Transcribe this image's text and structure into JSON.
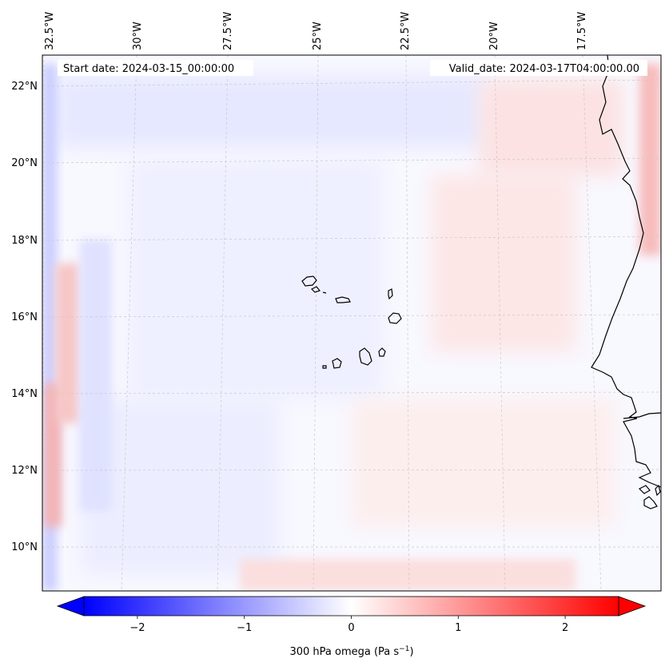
{
  "map": {
    "start_label": "Start date: 2024-03-15_00:00:00",
    "valid_label": "Valid_date: 2024-03-17T04:00:00.00",
    "lon_labels": [
      "32.5°W",
      "30°W",
      "27.5°W",
      "25°W",
      "22.5°W",
      "20°W",
      "17.5°W"
    ],
    "lat_labels": [
      "22°N",
      "20°N",
      "18°N",
      "16°N",
      "14°N",
      "12°N",
      "10°N"
    ],
    "field": "300 hPa omega"
  },
  "colorbar": {
    "label_prefix": "300 hPa omega (Pa s",
    "label_exp": "−1",
    "label_suffix": ")",
    "ticks": [
      "−2",
      "−1",
      "0",
      "1",
      "2"
    ],
    "tick_values": [
      -2,
      -1,
      0,
      1,
      2
    ],
    "range": [
      -2.5,
      2.5
    ],
    "colors": {
      "neg": "#0000ff",
      "mid": "#ffffff",
      "pos": "#ff0000"
    },
    "extend": "both"
  }
}
